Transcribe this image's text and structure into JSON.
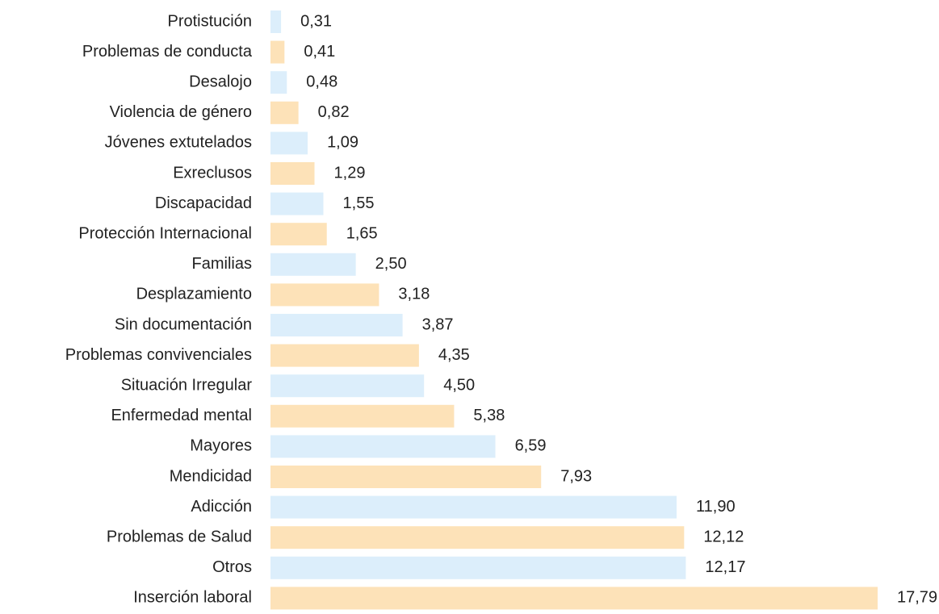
{
  "chart_data": {
    "type": "bar",
    "orientation": "horizontal",
    "categories": [
      "Protistución",
      "Problemas de conducta",
      "Desalojo",
      "Violencia de género",
      "Jóvenes extutelados",
      "Exreclusos",
      "Discapacidad",
      "Protección Internacional",
      "Familias",
      "Desplazamiento",
      "Sin documentación",
      "Problemas convivenciales",
      "Situación Irregular",
      "Enfermedad mental",
      "Mayores",
      "Mendicidad",
      "Adicción",
      "Problemas de Salud",
      "Otros",
      "Inserción laboral"
    ],
    "values": [
      0.31,
      0.41,
      0.48,
      0.82,
      1.09,
      1.29,
      1.55,
      1.65,
      2.5,
      3.18,
      3.87,
      4.35,
      4.5,
      5.38,
      6.59,
      7.93,
      11.9,
      12.12,
      12.17,
      17.79
    ],
    "value_labels": [
      "0,31",
      "0,41",
      "0,48",
      "0,82",
      "1,09",
      "1,29",
      "1,55",
      "1,65",
      "2,50",
      "3,18",
      "3,87",
      "4,35",
      "4,50",
      "5,38",
      "6,59",
      "7,93",
      "11,90",
      "12,12",
      "12,17",
      "17,79"
    ],
    "colors": [
      "#dceefb",
      "#fde2b8"
    ]
  }
}
